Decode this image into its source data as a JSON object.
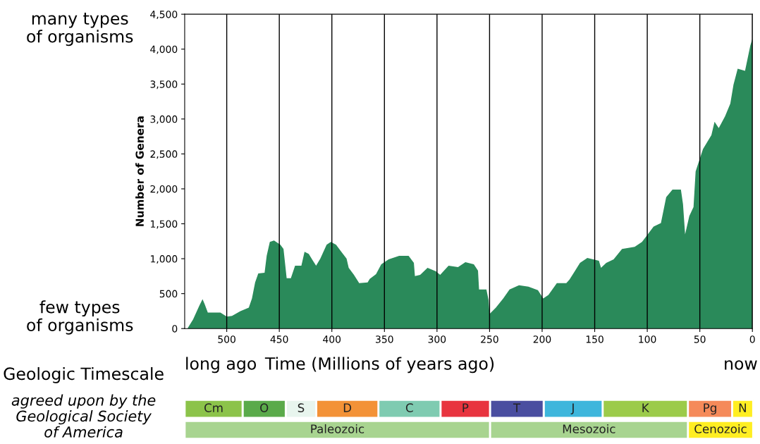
{
  "chart_data": [
    {
      "type": "area",
      "ylabel": "Number of Genera",
      "xlabel": "Time (Millions of years ago)",
      "x": [
        537,
        532,
        526,
        523,
        521,
        518,
        506,
        500,
        495,
        487,
        479,
        476,
        473,
        470,
        464,
        462,
        459,
        455,
        449,
        446,
        443,
        439,
        435,
        429,
        426,
        422,
        418,
        415,
        411,
        405,
        401,
        396,
        391,
        386,
        384,
        379,
        374,
        366,
        364,
        358,
        353,
        346,
        336,
        327,
        322,
        321,
        316,
        309,
        301,
        297,
        289,
        280,
        273,
        265,
        261,
        260,
        253,
        251,
        250,
        244,
        237,
        231,
        222,
        213,
        204,
        199,
        194,
        186,
        177,
        174,
        169,
        164,
        157,
        146,
        144,
        139,
        132,
        124,
        112,
        105,
        100,
        94,
        87,
        82,
        76,
        68,
        66,
        64,
        60,
        56,
        54,
        47,
        39,
        36,
        32,
        26,
        21,
        18,
        14,
        7,
        2,
        0
      ],
      "series": [
        {
          "color": "#2a8a5a",
          "values": [
            10,
            130,
            330,
            420,
            350,
            230,
            230,
            170,
            180,
            250,
            300,
            430,
            660,
            790,
            800,
            1040,
            1240,
            1260,
            1200,
            1140,
            720,
            720,
            900,
            900,
            1100,
            1070,
            970,
            900,
            1000,
            1200,
            1240,
            1200,
            1100,
            1000,
            870,
            770,
            650,
            660,
            710,
            780,
            920,
            990,
            1040,
            1040,
            940,
            750,
            770,
            870,
            820,
            770,
            900,
            880,
            950,
            920,
            830,
            560,
            560,
            410,
            210,
            300,
            430,
            560,
            620,
            600,
            550,
            430,
            480,
            650,
            650,
            700,
            820,
            940,
            1010,
            970,
            870,
            940,
            990,
            1140,
            1170,
            1240,
            1340,
            1460,
            1510,
            1880,
            1990,
            1990,
            1780,
            1350,
            1610,
            1740,
            2250,
            2570,
            2770,
            2960,
            2870,
            3040,
            3220,
            3490,
            3720,
            3690,
            4050,
            4150
          ]
        }
      ],
      "xlim": [
        540,
        0
      ],
      "xticks": [
        500,
        450,
        400,
        350,
        300,
        250,
        200,
        150,
        100,
        50,
        0
      ],
      "ylim": [
        0,
        4500
      ],
      "yticks": [
        {
          "value": 0,
          "label": "0"
        },
        {
          "value": 500,
          "label": "500"
        },
        {
          "value": 1000,
          "label": "1,000"
        },
        {
          "value": 1500,
          "label": "1,500"
        },
        {
          "value": 2000,
          "label": "2,000"
        },
        {
          "value": 2500,
          "label": "2,500"
        },
        {
          "value": 3000,
          "label": "3,000"
        },
        {
          "value": 3500,
          "label": "3,500"
        },
        {
          "value": 4000,
          "label": "4,000"
        },
        {
          "value": 4500,
          "label": "4,500"
        }
      ],
      "grid": "x",
      "annotations": [
        "many types\nof organisms",
        "few types\nof organisms",
        "long ago",
        "now",
        "Geologic Timescale",
        "agreed upon by the\nGeological Society\nof America"
      ]
    },
    {
      "type": "bar",
      "orientation": "horizontal",
      "stacked": true,
      "categories": [
        null,
        null
      ],
      "xlim": [
        540,
        0
      ],
      "tick_labels": false,
      "series": [
        {
          "name": "N",
          "color": "#ffee22",
          "values": [
            20,
            null
          ]
        },
        {
          "name": "Pg",
          "color": "#f58a5a",
          "values": [
            42,
            null
          ]
        },
        {
          "name": "K",
          "color": "#9ccb4a",
          "values": [
            81,
            null
          ]
        },
        {
          "name": "J",
          "color": "#3eb6dc",
          "values": [
            56,
            null
          ]
        },
        {
          "name": "T",
          "color": "#4a4ea0",
          "values": [
            51,
            null
          ]
        },
        {
          "name": "P",
          "color": "#e8343f",
          "values": [
            47,
            null
          ]
        },
        {
          "name": "C",
          "color": "#7fcbb1",
          "values": [
            59,
            null
          ]
        },
        {
          "name": "D",
          "color": "#f39237",
          "values": [
            59,
            null
          ]
        },
        {
          "name": "S",
          "color": "#e8f5ee",
          "values": [
            29,
            null
          ]
        },
        {
          "name": "O",
          "color": "#5aaa4a",
          "values": [
            41,
            null
          ]
        },
        {
          "name": "Cm",
          "color": "#8cc34a",
          "values": [
            55,
            null
          ]
        },
        {
          "name": "Cenozoic",
          "color": "#ffee22",
          "values": [
            null,
            62
          ]
        },
        {
          "name": "Mesozoic",
          "color": "#a8d490",
          "values": [
            null,
            188
          ]
        },
        {
          "name": "Paleozoic",
          "color": "#a8d490",
          "values": [
            null,
            290
          ]
        }
      ]
    }
  ]
}
